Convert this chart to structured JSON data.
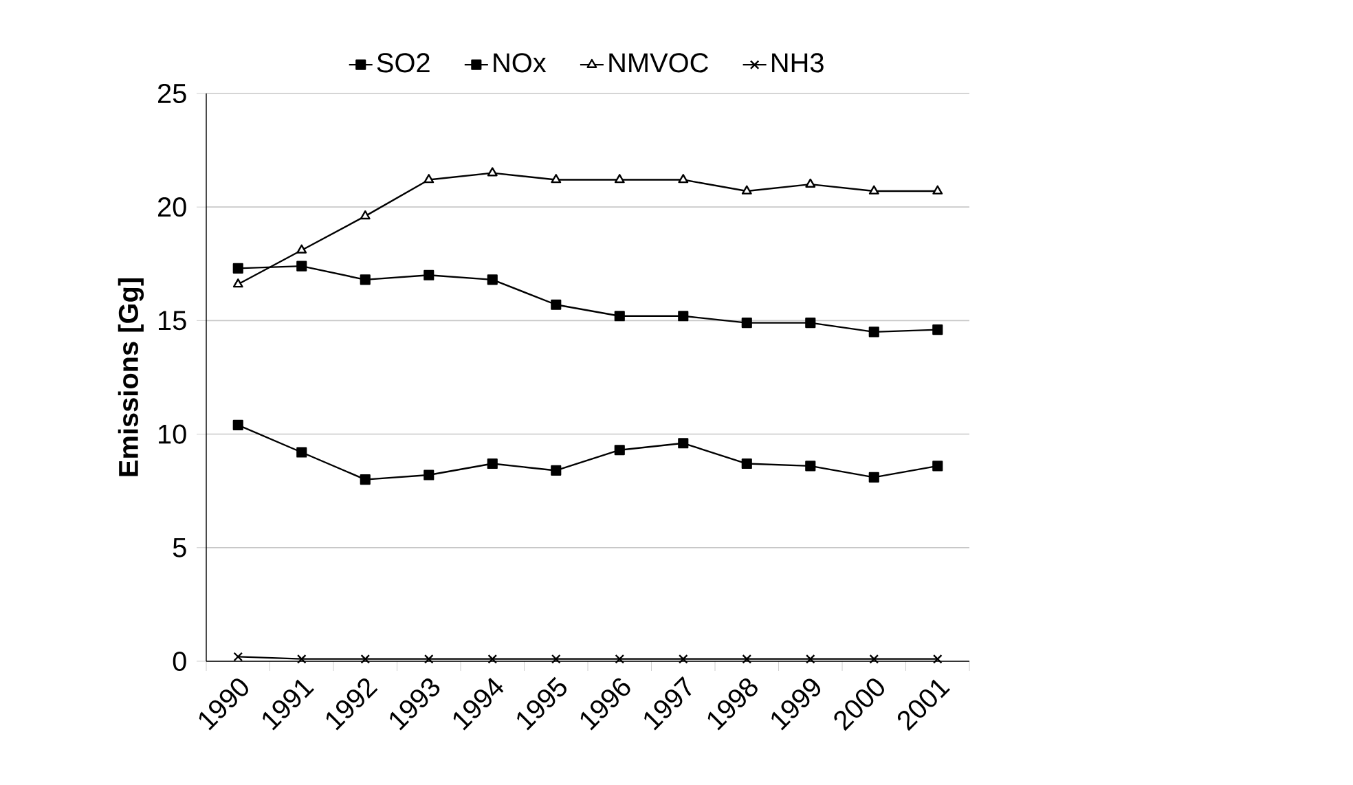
{
  "chart_data": {
    "type": "line",
    "ylabel": "Emissions [Gg]",
    "categories": [
      "1990",
      "1991",
      "1992",
      "1993",
      "1994",
      "1995",
      "1996",
      "1997",
      "1998",
      "1999",
      "2000",
      "2001"
    ],
    "series": [
      {
        "name": "SO2",
        "color": "#000000",
        "marker": "square",
        "values": [
          10.4,
          9.2,
          8.0,
          8.2,
          8.7,
          8.4,
          9.3,
          9.6,
          8.7,
          8.6,
          8.1,
          8.6
        ]
      },
      {
        "name": "NOx",
        "color": "#000000",
        "marker": "square",
        "values": [
          17.3,
          17.4,
          16.8,
          17.0,
          16.8,
          15.7,
          15.2,
          15.2,
          14.9,
          14.9,
          14.5,
          14.6
        ]
      },
      {
        "name": "NMVOC",
        "color": "#000000",
        "marker": "triangle",
        "values": [
          16.6,
          18.1,
          19.6,
          21.2,
          21.5,
          21.2,
          21.2,
          21.2,
          20.7,
          21.0,
          20.7,
          20.7
        ]
      },
      {
        "name": "NH3",
        "color": "#000000",
        "marker": "cross",
        "values": [
          0.2,
          0.1,
          0.1,
          0.1,
          0.1,
          0.1,
          0.1,
          0.1,
          0.1,
          0.1,
          0.1,
          0.1
        ]
      }
    ],
    "ylim": [
      0,
      25
    ],
    "yticks": [
      0,
      5,
      10,
      15,
      20,
      25
    ],
    "grid": "y",
    "legend": "top",
    "line_style": "solid"
  }
}
